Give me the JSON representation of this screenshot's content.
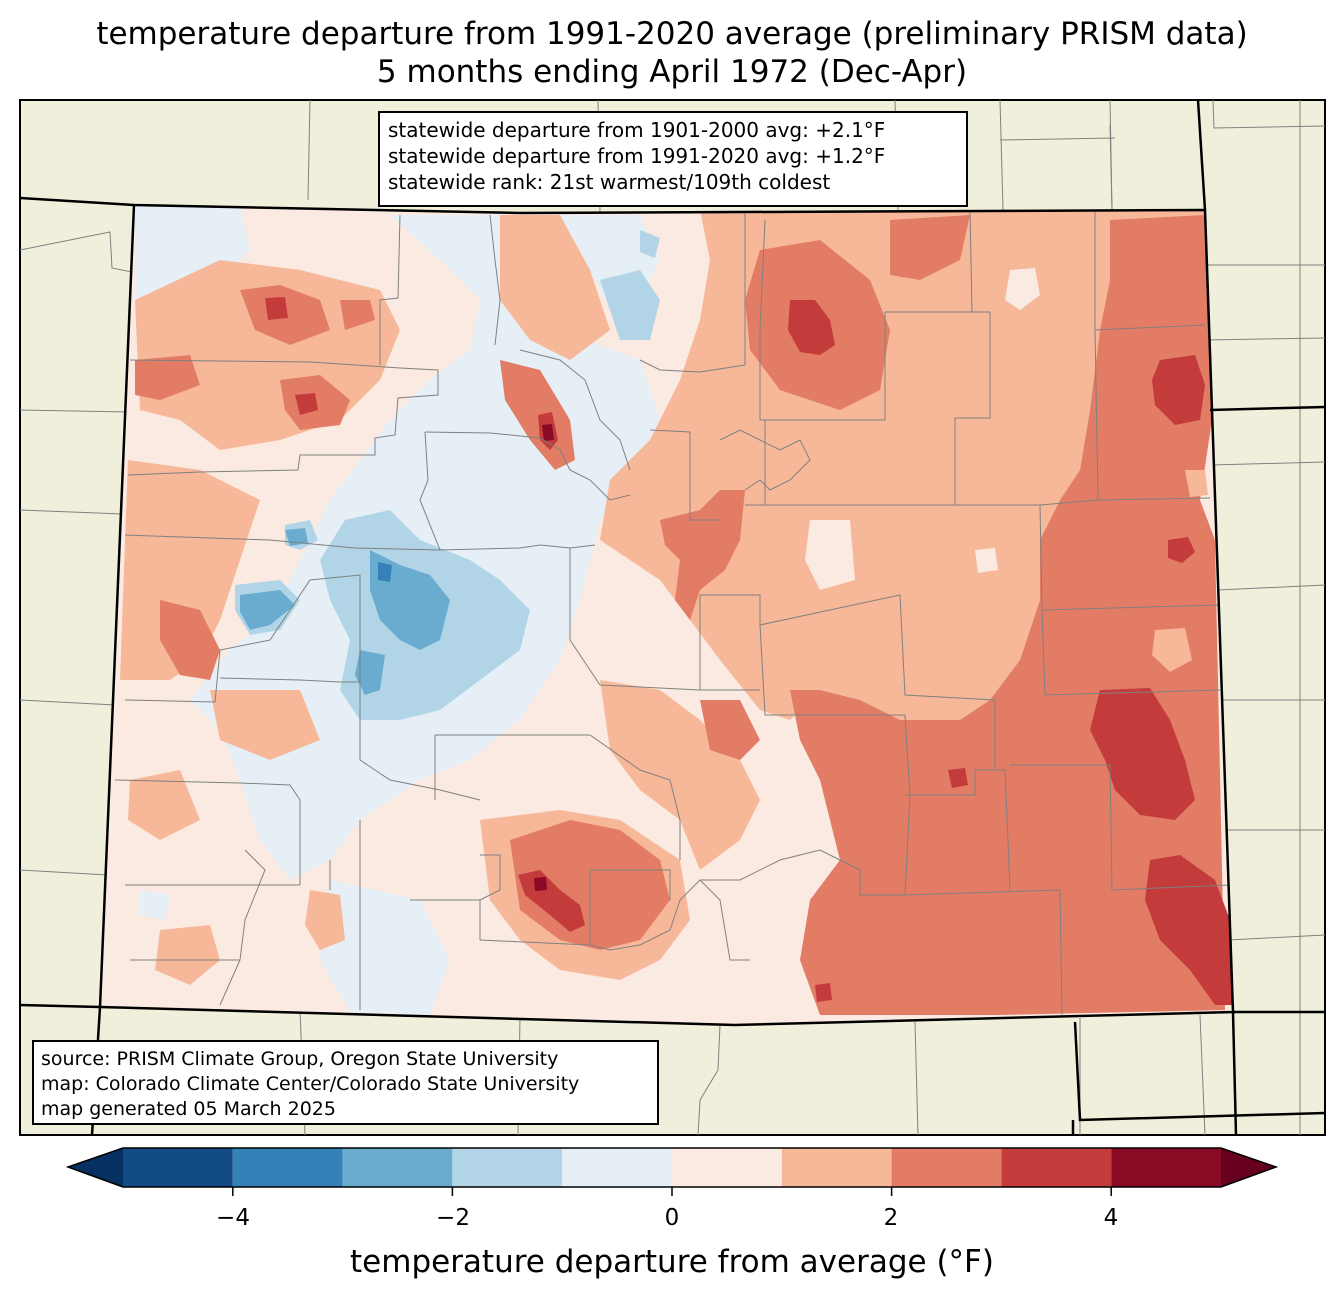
{
  "title": {
    "line1": "temperature departure from 1991-2020 average (preliminary PRISM data)",
    "line2": "5 months ending April 1972 (Dec-Apr)"
  },
  "stats": {
    "line1": "statewide departure from 1901-2000 avg: +2.1°F",
    "line2": "statewide departure from 1991-2020 avg: +1.2°F",
    "line3": "statewide rank: 21st warmest/109th coldest"
  },
  "source": {
    "line1": "source: PRISM Climate Group, Oregon State University",
    "line2": "map: Colorado Climate Center/Colorado State University",
    "line3": "map generated 05 March 2025"
  },
  "colorbar": {
    "label": "temperature departure from average (°F)",
    "ticks": [
      "−4",
      "−2",
      "0",
      "2",
      "4"
    ],
    "bins": [
      {
        "from": -5,
        "to": -4,
        "color": "#134b87"
      },
      {
        "from": -4,
        "to": -3,
        "color": "#3480b9"
      },
      {
        "from": -3,
        "to": -2,
        "color": "#6aacd0"
      },
      {
        "from": -2,
        "to": -1,
        "color": "#b1d5e7"
      },
      {
        "from": -1,
        "to": 0,
        "color": "#e5eff5"
      },
      {
        "from": 0,
        "to": 1,
        "color": "#faeae1"
      },
      {
        "from": 1,
        "to": 2,
        "color": "#f7b799"
      },
      {
        "from": 2,
        "to": 3,
        "color": "#e27c65"
      },
      {
        "from": 3,
        "to": 4,
        "color": "#c43b3c"
      },
      {
        "from": 4,
        "to": 5,
        "color": "#8a0b25"
      }
    ],
    "under_color": "#053061",
    "over_color": "#67001f"
  },
  "colors": {
    "land": "#efefdb",
    "border": "#000000",
    "county_line": "#808080"
  }
}
